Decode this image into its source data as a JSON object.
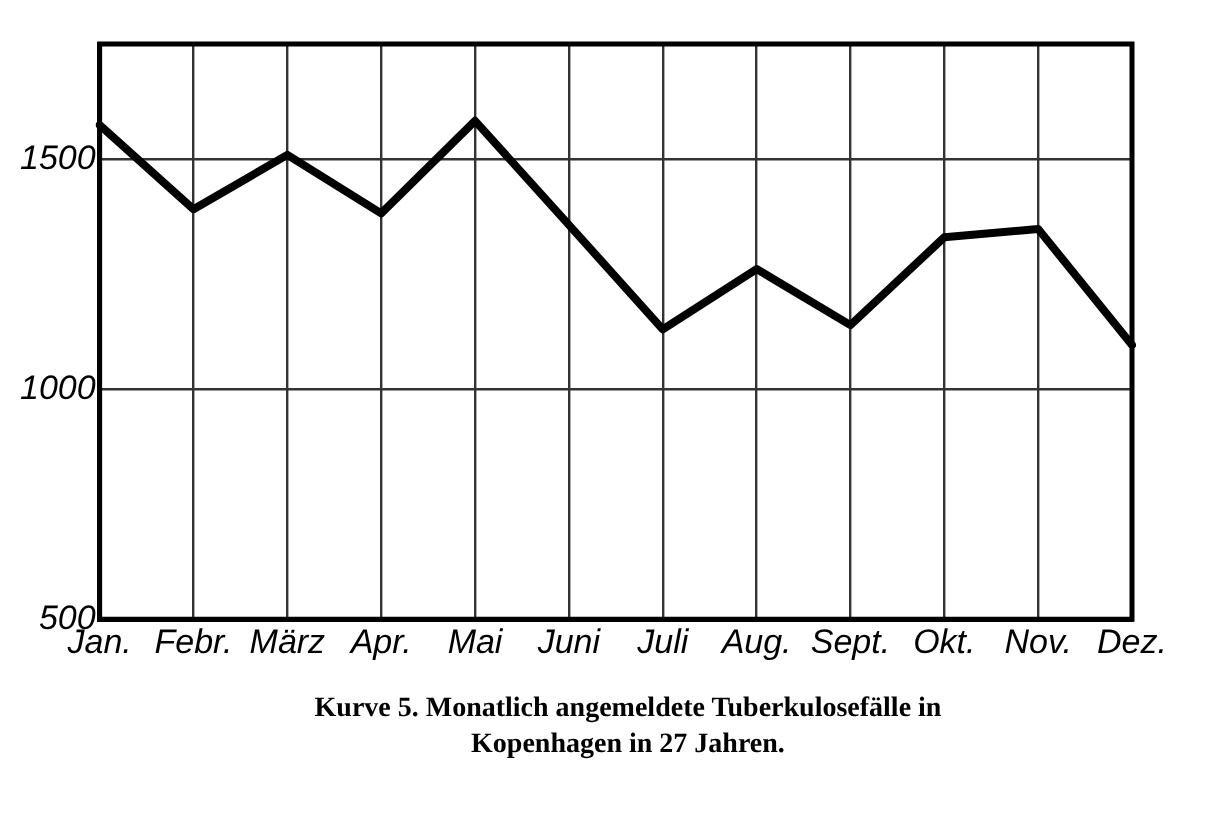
{
  "chart_data": {
    "type": "line",
    "title": "Kurve 5. Monatlich angemeldete Tuberkulosefälle in Kopenhagen in 27 Jahren.",
    "categories": [
      "Jan.",
      "Febr.",
      "März",
      "Apr.",
      "Mai",
      "Juni",
      "Juli",
      "Aug.",
      "Sept.",
      "Okt.",
      "Nov.",
      "Dez."
    ],
    "series": [
      {
        "color": "#000000",
        "values": [
          1574,
          1391,
          1509,
          1382,
          1583,
          1357,
          1130,
          1261,
          1139,
          1330,
          1348,
          1096
        ]
      }
    ],
    "ylim": [
      500,
      1750
    ],
    "yticks": [
      500,
      1000,
      1500
    ],
    "grid": true,
    "marker": "none",
    "line_style": "solid"
  }
}
